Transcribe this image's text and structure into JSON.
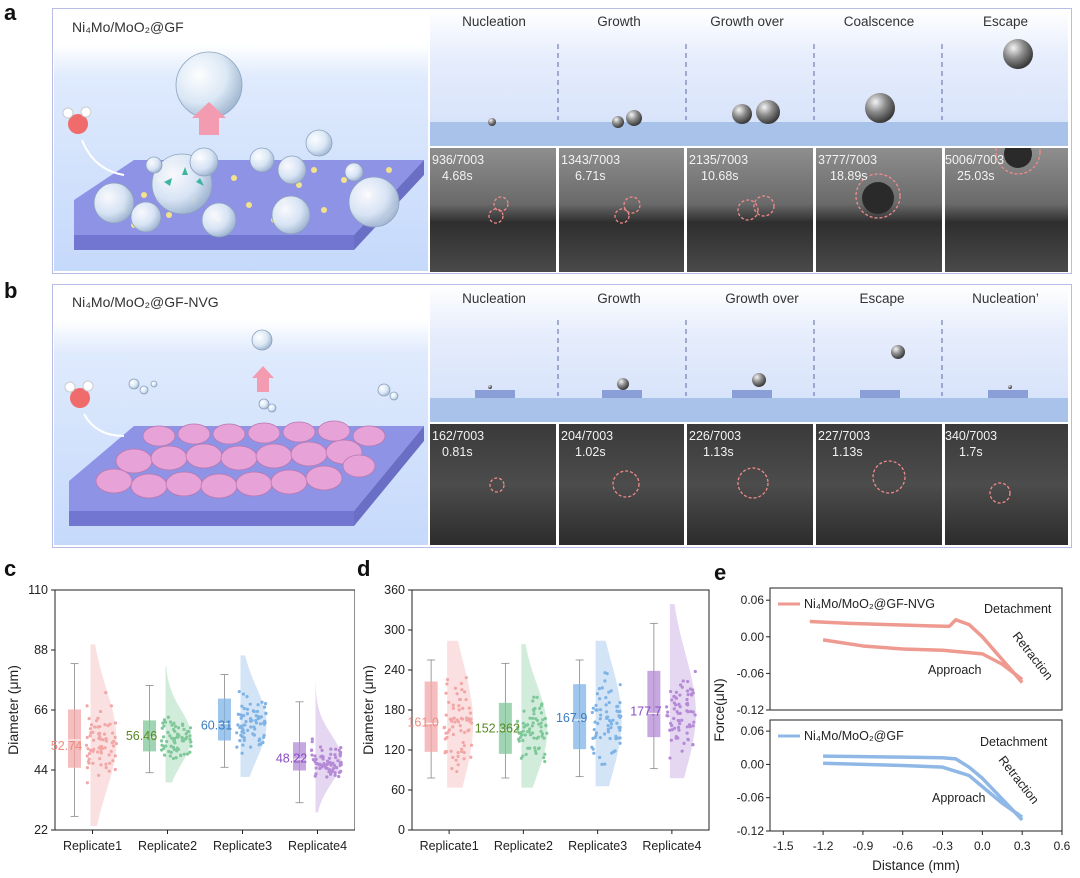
{
  "panel_labels": {
    "a": "a",
    "b": "b",
    "c": "c",
    "d": "d",
    "e": "e"
  },
  "panel_a": {
    "title": "Ni₄Mo/MoO₂@GF",
    "stages": [
      "Nucleation",
      "Growth",
      "Growth over",
      "Coalscence",
      "Escape"
    ],
    "frames": [
      {
        "frame": "936/7003",
        "time": "4.68s"
      },
      {
        "frame": "1343/7003",
        "time": "6.71s"
      },
      {
        "frame": "2135/7003",
        "time": "10.68s"
      },
      {
        "frame": "3777/7003",
        "time": "18.89s"
      },
      {
        "frame": "5006/7003",
        "time": "25.03s"
      }
    ]
  },
  "panel_b": {
    "title": "Ni₄Mo/MoO₂@GF-NVG",
    "stages": [
      "Nucleation",
      "Growth",
      "Growth over",
      "Escape",
      "Nucleation’"
    ],
    "frames": [
      {
        "frame": "162/7003",
        "time": "0.81s"
      },
      {
        "frame": "204/7003",
        "time": "1.02s"
      },
      {
        "frame": "226/7003",
        "time": "1.13s"
      },
      {
        "frame": "227/7003",
        "time": "1.13s"
      },
      {
        "frame": "340/7003",
        "time": "1.7s"
      }
    ]
  },
  "chart_data": [
    {
      "type": "box-violin",
      "panel": "c",
      "ylabel": "Diameter (μm)",
      "categories": [
        "Replicate1",
        "Replicate2",
        "Replicate3",
        "Replicate4"
      ],
      "ylim": [
        22,
        110
      ],
      "yticks": [
        22,
        44,
        66,
        88,
        110
      ],
      "mean_labels": [
        "52.74",
        "56.46",
        "60.31",
        "48.22"
      ],
      "means": [
        52.74,
        56.46,
        60.31,
        48.22
      ],
      "box": [
        {
          "q1": 45,
          "median": 55,
          "q3": 66,
          "whisker_low": 27,
          "whisker_high": 83
        },
        {
          "q1": 51,
          "median": 56,
          "q3": 62,
          "whisker_low": 43,
          "whisker_high": 75
        },
        {
          "q1": 55,
          "median": 61,
          "q3": 70,
          "whisker_low": 45,
          "whisker_high": 79
        },
        {
          "q1": 44,
          "median": 48,
          "q3": 54,
          "whisker_low": 32,
          "whisker_high": 69
        }
      ],
      "colors": [
        "#f2a7a7",
        "#7fc89a",
        "#7fb3e6",
        "#b58ad6"
      ]
    },
    {
      "type": "box-violin",
      "panel": "d",
      "ylabel": "Diameter (μm)",
      "categories": [
        "Replicate1",
        "Replicate2",
        "Replicate3",
        "Replicate4"
      ],
      "ylim": [
        0,
        360
      ],
      "yticks": [
        0,
        60,
        120,
        180,
        240,
        300,
        360
      ],
      "mean_labels": [
        "161.0",
        "152.362",
        "167.9",
        "177.7"
      ],
      "means": [
        161.0,
        152.362,
        167.9,
        177.7
      ],
      "box": [
        {
          "q1": 118,
          "median": 160,
          "q3": 222,
          "whisker_low": 78,
          "whisker_high": 255
        },
        {
          "q1": 115,
          "median": 150,
          "q3": 190,
          "whisker_low": 78,
          "whisker_high": 250
        },
        {
          "q1": 122,
          "median": 165,
          "q3": 218,
          "whisker_low": 80,
          "whisker_high": 255
        },
        {
          "q1": 140,
          "median": 175,
          "q3": 238,
          "whisker_low": 92,
          "whisker_high": 310
        }
      ],
      "colors": [
        "#f2a7a7",
        "#7fc89a",
        "#7fb3e6",
        "#b58ad6"
      ]
    },
    {
      "type": "line",
      "panel": "e",
      "xlabel": "Distance (mm)",
      "ylabel": "Force(μN)",
      "xlim": [
        -1.6,
        0.6
      ],
      "xticks": [
        -1.5,
        -1.2,
        -0.9,
        -0.6,
        -0.3,
        0.0,
        0.3,
        0.6
      ],
      "xtick_labels": [
        "-1.5",
        "-1.2",
        "-0.9",
        "-0.6",
        "-0.3",
        "0.0",
        "0.3",
        "0.6"
      ],
      "subplots": [
        {
          "series_name": "Ni₄Mo/MoO₂@GF-NVG",
          "color": "#ee9a90",
          "ylim": [
            -0.12,
            0.08
          ],
          "yticks": [
            -0.12,
            -0.06,
            0.0,
            0.06
          ],
          "ytick_labels": [
            "-0.12",
            "-0.06",
            "0.00",
            "0.06"
          ],
          "annotations": [
            "Detachment",
            "Retraction",
            "Approach"
          ],
          "retraction": {
            "x": [
              -1.3,
              -1.0,
              -0.7,
              -0.4,
              -0.25,
              -0.2,
              -0.1,
              0.0,
              0.1,
              0.2,
              0.3
            ],
            "y": [
              0.025,
              0.022,
              0.02,
              0.018,
              0.017,
              0.028,
              0.02,
              0.0,
              -0.025,
              -0.05,
              -0.075
            ]
          },
          "approach": {
            "x": [
              -1.2,
              -0.9,
              -0.6,
              -0.3,
              0.0,
              0.15,
              0.3
            ],
            "y": [
              -0.005,
              -0.015,
              -0.02,
              -0.022,
              -0.028,
              -0.045,
              -0.07
            ]
          }
        },
        {
          "series_name": "Ni₄Mo/MoO₂@GF",
          "color": "#8fb8e6",
          "ylim": [
            -0.12,
            0.08
          ],
          "yticks": [
            -0.12,
            -0.06,
            0.0,
            0.06
          ],
          "ytick_labels": [
            "-0.12",
            "-0.06",
            "0.00",
            "0.06"
          ],
          "annotations": [
            "Detachment",
            "Retraction",
            "Approach"
          ],
          "retraction": {
            "x": [
              -1.2,
              -0.9,
              -0.6,
              -0.3,
              -0.2,
              -0.1,
              0.0,
              0.1,
              0.2,
              0.3
            ],
            "y": [
              0.015,
              0.014,
              0.013,
              0.012,
              0.01,
              -0.005,
              -0.025,
              -0.05,
              -0.075,
              -0.1
            ]
          },
          "approach": {
            "x": [
              -1.2,
              -0.9,
              -0.6,
              -0.3,
              -0.1,
              0.0,
              0.15,
              0.3
            ],
            "y": [
              0.002,
              0.0,
              -0.002,
              -0.005,
              -0.02,
              -0.04,
              -0.07,
              -0.095
            ]
          }
        }
      ]
    }
  ]
}
